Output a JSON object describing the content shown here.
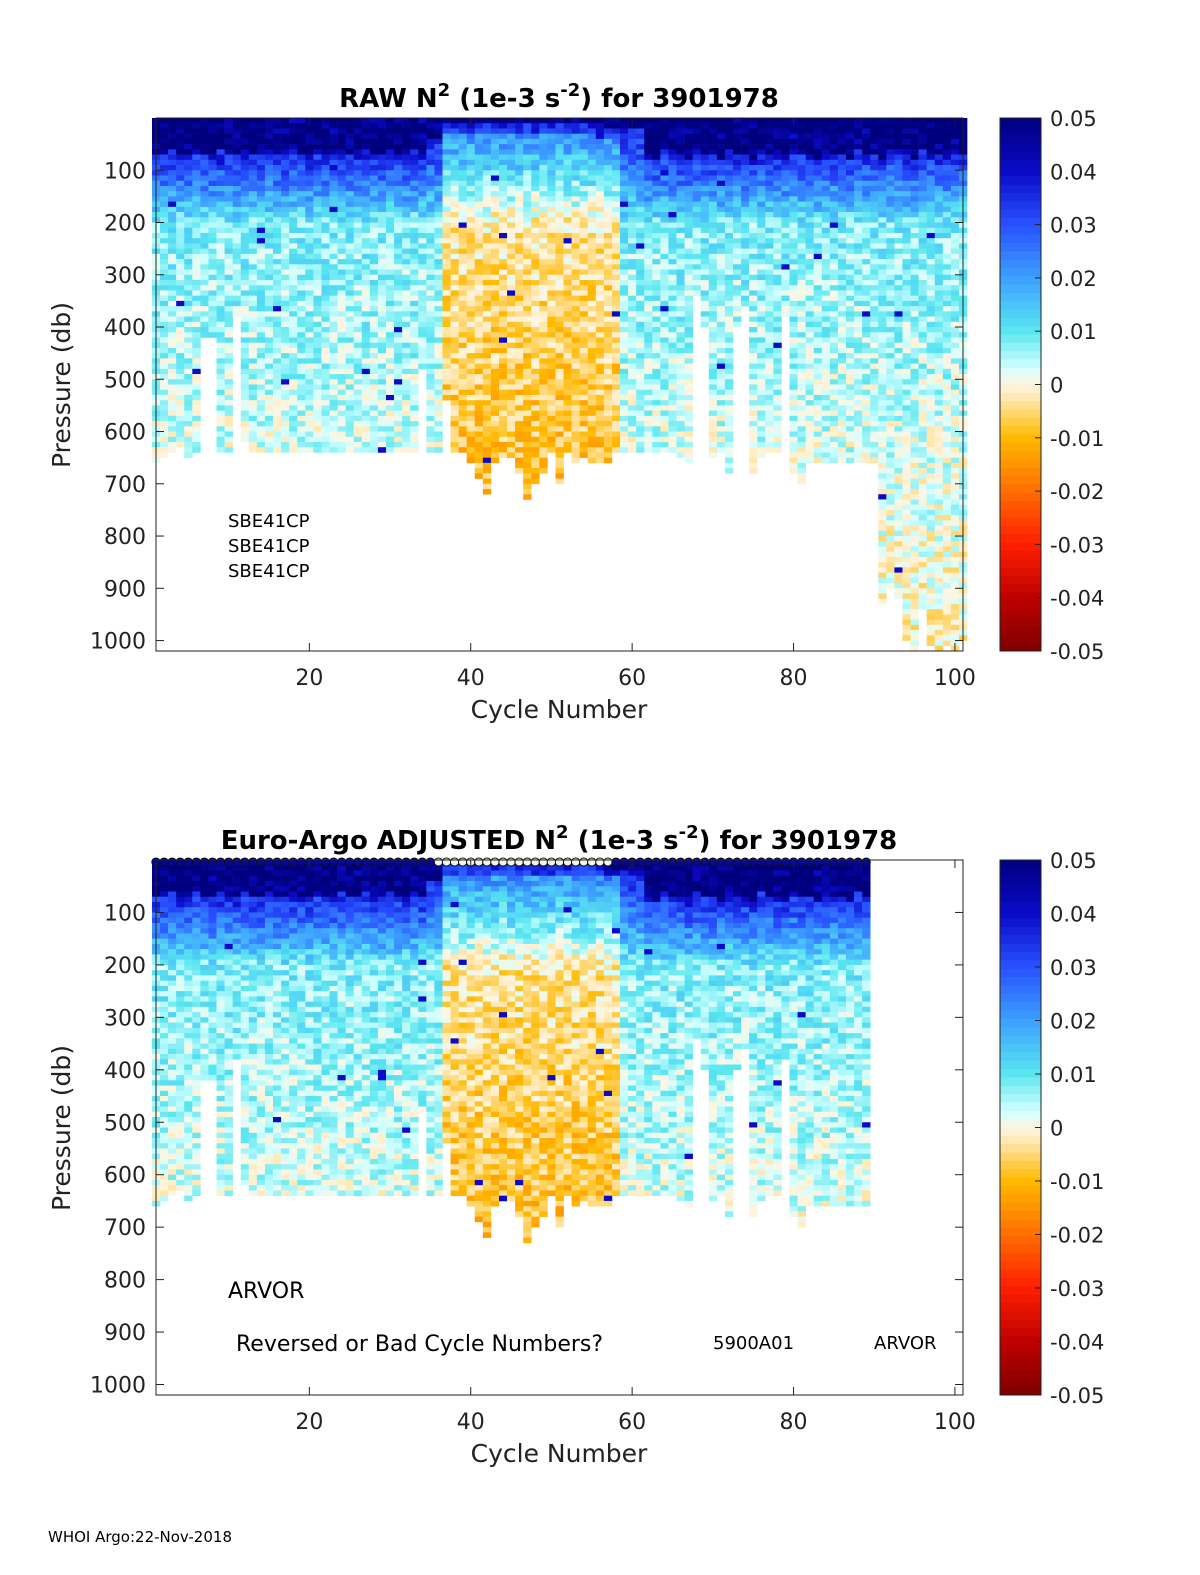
{
  "footer": "WHOI Argo:22-Nov-2018",
  "colorbar": {
    "ticks": [
      "0.05",
      "0.04",
      "0.03",
      "0.02",
      "0.01",
      "0",
      "-0.01",
      "-0.02",
      "-0.03",
      "-0.04",
      "-0.05"
    ],
    "colors": [
      "#7f0000",
      "#c00000",
      "#ff2000",
      "#ff7f00",
      "#ffbf00",
      "#fff0d0",
      "#c8ffff",
      "#40e0f0",
      "#40a0ff",
      "#2040ff",
      "#0000c0",
      "#00007f"
    ]
  },
  "chart_data": [
    {
      "type": "heatmap",
      "title": {
        "pre": "RAW N",
        "sup1": "2",
        "mid": " (1e-3 s",
        "sup2": "-2",
        "post": ") for 3901978"
      },
      "xlabel": "Cycle Number",
      "ylabel": "Pressure (db)",
      "xlim": [
        1,
        101
      ],
      "ylim": [
        1020,
        0
      ],
      "clim": [
        -0.05,
        0.05
      ],
      "xticks": [
        "20",
        "40",
        "60",
        "80",
        "100"
      ],
      "yticks": [
        "100",
        "200",
        "300",
        "400",
        "500",
        "600",
        "700",
        "800",
        "900",
        "1000"
      ],
      "annotations": [
        "SBE41CP",
        "SBE41CP",
        "SBE41CP"
      ],
      "cycles": [
        1,
        101
      ],
      "profile_depth_db": [
        660,
        650,
        640,
        630,
        650,
        640,
        420,
        420,
        640,
        640,
        380,
        620,
        640,
        640,
        640,
        640,
        640,
        640,
        640,
        640,
        640,
        640,
        640,
        640,
        640,
        640,
        640,
        640,
        640,
        640,
        640,
        640,
        640,
        480,
        640,
        640,
        540,
        640,
        640,
        660,
        690,
        720,
        660,
        650,
        650,
        680,
        730,
        700,
        680,
        640,
        700,
        640,
        660,
        650,
        660,
        660,
        660,
        640,
        640,
        640,
        640,
        640,
        640,
        640,
        640,
        650,
        660,
        340,
        400,
        650,
        640,
        680,
        400,
        360,
        680,
        650,
        640,
        640,
        380,
        680,
        700,
        660,
        660,
        660,
        660,
        660,
        660,
        660,
        660,
        660,
        930,
        900,
        920,
        1000,
        1020,
        940,
        1010,
        1020,
        1010,
        1020,
        1000
      ]
    },
    {
      "type": "heatmap",
      "title": {
        "pre": "Euro-Argo  ADJUSTED N",
        "sup1": "2",
        "mid": " (1e-3 s",
        "sup2": "-2",
        "post": ") for 3901978"
      },
      "xlabel": "Cycle Number",
      "ylabel": "Pressure (db)",
      "xlim": [
        1,
        101
      ],
      "ylim": [
        1020,
        0
      ],
      "clim": [
        -0.05,
        0.05
      ],
      "xticks": [
        "20",
        "40",
        "60",
        "80",
        "100"
      ],
      "yticks": [
        "100",
        "200",
        "300",
        "400",
        "500",
        "600",
        "700",
        "800",
        "900",
        "1000"
      ],
      "annotations": [
        "ARVOR",
        "Reversed or Bad Cycle Numbers?",
        "5900A01",
        "ARVOR"
      ],
      "cycles": [
        1,
        89
      ],
      "profile_depth_db": [
        660,
        650,
        640,
        630,
        650,
        640,
        420,
        420,
        640,
        640,
        380,
        620,
        640,
        640,
        640,
        640,
        640,
        640,
        640,
        640,
        640,
        640,
        640,
        640,
        640,
        640,
        640,
        640,
        640,
        640,
        640,
        640,
        640,
        480,
        640,
        640,
        540,
        640,
        640,
        660,
        690,
        720,
        660,
        650,
        650,
        680,
        730,
        700,
        680,
        640,
        700,
        640,
        660,
        650,
        660,
        660,
        660,
        640,
        640,
        640,
        640,
        640,
        640,
        640,
        640,
        650,
        660,
        340,
        400,
        650,
        640,
        680,
        400,
        360,
        680,
        650,
        640,
        640,
        380,
        680,
        700,
        660,
        660,
        660,
        660,
        660,
        660,
        660,
        660
      ]
    }
  ]
}
